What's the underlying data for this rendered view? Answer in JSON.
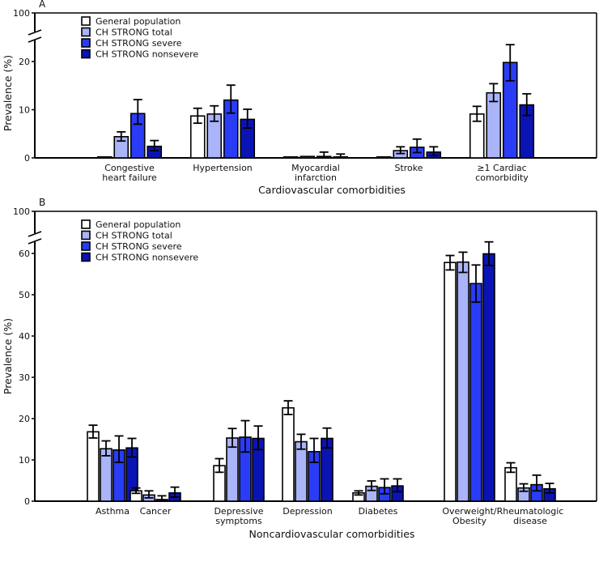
{
  "chart_data": [
    {
      "type": "bar",
      "panel": "A",
      "title": "A",
      "xlabel": "Cardiovascular comorbidities",
      "ylabel": "Prevalence (%)",
      "ylim": [
        0,
        100
      ],
      "axis_break": [
        25,
        95
      ],
      "yticks": [
        0,
        10,
        20,
        100
      ],
      "grid": false,
      "legend_position": "top-left",
      "categories": [
        [
          "Congestive",
          "heart failure"
        ],
        [
          "Hypertension"
        ],
        [
          "Myocardial",
          "infarction"
        ],
        [
          "Stroke"
        ],
        [
          "≥1 Cardiac",
          "comorbidity"
        ]
      ],
      "series": [
        {
          "name": "General population",
          "color": "#ffffff",
          "values": [
            0.2,
            8.7,
            0.1,
            0.1,
            9.1
          ],
          "ci_low": [
            null,
            7.2,
            null,
            null,
            7.6
          ],
          "ci_high": [
            null,
            10.3,
            null,
            null,
            10.7
          ]
        },
        {
          "name": "CH STRONG total",
          "color": "#aab4f8",
          "values": [
            4.4,
            9.1,
            0.3,
            1.5,
            13.5
          ],
          "ci_low": [
            3.5,
            7.6,
            null,
            0.9,
            11.7
          ],
          "ci_high": [
            5.4,
            10.8,
            null,
            2.3,
            15.4
          ]
        },
        {
          "name": "CH STRONG severe",
          "color": "#2a3cf5",
          "values": [
            9.2,
            12.0,
            0.3,
            2.2,
            19.8
          ],
          "ci_low": [
            7.0,
            9.3,
            0.0,
            1.1,
            16.0
          ],
          "ci_high": [
            12.1,
            15.1,
            1.2,
            3.9,
            23.5
          ]
        },
        {
          "name": "CH STRONG nonsevere",
          "color": "#0a14b4",
          "values": [
            2.4,
            8.0,
            0.2,
            1.2,
            11.0
          ],
          "ci_low": [
            1.5,
            6.2,
            0.0,
            0.5,
            8.8
          ],
          "ci_high": [
            3.6,
            10.1,
            0.8,
            2.3,
            13.3
          ]
        }
      ]
    },
    {
      "type": "bar",
      "panel": "B",
      "title": "B",
      "xlabel": "Noncardiovascular comorbidities",
      "ylabel": "Prevalence (%)",
      "ylim": [
        0,
        100
      ],
      "axis_break": [
        65,
        95
      ],
      "yticks": [
        0,
        10,
        20,
        30,
        40,
        50,
        60,
        100
      ],
      "grid": false,
      "legend_position": "top-left",
      "categories": [
        [
          "Asthma"
        ],
        [
          "Cancer"
        ],
        [
          "Depressive",
          "symptoms"
        ],
        [
          "Depression"
        ],
        [
          "Diabetes"
        ],
        [
          "Overweight/",
          "Obesity"
        ],
        [
          "Rheumatologic",
          "disease"
        ]
      ],
      "series": [
        {
          "name": "General population",
          "color": "#ffffff",
          "values": [
            16.8,
            2.5,
            8.6,
            22.6,
            2.0,
            57.8,
            8.1
          ],
          "ci_low": [
            15.3,
            1.9,
            7.0,
            21.0,
            1.5,
            56.0,
            7.0
          ],
          "ci_high": [
            18.4,
            3.2,
            10.3,
            24.3,
            2.5,
            59.5,
            9.3
          ]
        },
        {
          "name": "CH STRONG total",
          "color": "#aab4f8",
          "values": [
            12.7,
            1.5,
            15.3,
            14.4,
            3.6,
            57.9,
            3.2
          ],
          "ci_low": [
            11.0,
            0.8,
            13.1,
            12.6,
            2.6,
            55.4,
            2.4
          ],
          "ci_high": [
            14.6,
            2.5,
            17.6,
            16.2,
            4.9,
            60.3,
            4.2
          ]
        },
        {
          "name": "CH STRONG severe",
          "color": "#2a3cf5",
          "values": [
            12.4,
            0.4,
            15.5,
            12.0,
            3.3,
            52.7,
            4.0
          ],
          "ci_low": [
            9.4,
            0.0,
            11.9,
            9.4,
            1.8,
            48.2,
            2.5
          ],
          "ci_high": [
            15.8,
            1.3,
            19.5,
            15.2,
            5.4,
            57.2,
            6.3
          ]
        },
        {
          "name": "CH STRONG nonsevere",
          "color": "#0a14b4",
          "values": [
            12.9,
            2.0,
            15.2,
            15.2,
            3.7,
            59.9,
            3.0
          ],
          "ci_low": [
            10.7,
            1.0,
            12.5,
            12.9,
            2.3,
            57.1,
            2.0
          ],
          "ci_high": [
            15.2,
            3.4,
            18.2,
            17.7,
            5.4,
            62.8,
            4.3
          ]
        }
      ]
    }
  ]
}
